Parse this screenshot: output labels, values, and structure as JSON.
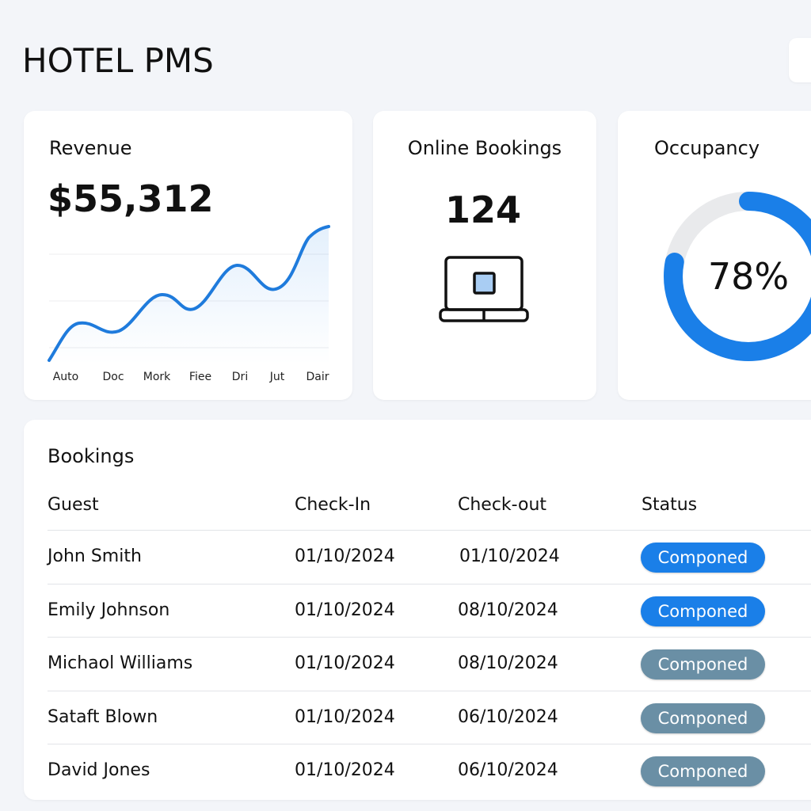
{
  "header": {
    "title": "HOTEL PMS"
  },
  "revenue": {
    "title": "Revenue",
    "value": "$55,312",
    "x_labels": [
      "Auto",
      "Doc",
      "Mork",
      "Fiee",
      "Dri",
      "Jut",
      "Dair"
    ]
  },
  "online_bookings": {
    "title": "Online Bookings",
    "value": "124"
  },
  "occupancy": {
    "title": "Occupancy",
    "value": 78,
    "value_label": "78%",
    "color": "#1a7fe8",
    "track_color": "#e9eaec"
  },
  "bookings": {
    "title": "Bookings",
    "columns": [
      "Guest",
      "Check-In",
      "Check-out",
      "Status"
    ],
    "rows": [
      {
        "guest": "John Smith",
        "check_in": "01/10/2024",
        "check_out": "01/10/2024",
        "status": "Componed",
        "status_color": "#1a7fe8"
      },
      {
        "guest": "Emily Johnson",
        "check_in": "01/10/2024",
        "check_out": "08/10/2024",
        "status": "Componed",
        "status_color": "#1a7fe8"
      },
      {
        "guest": "Michaol Williams",
        "check_in": "01/10/2024",
        "check_out": "08/10/2024",
        "status": "Componed",
        "status_color": "#6a8fa5"
      },
      {
        "guest": "Sataft Blown",
        "check_in": "01/10/2024",
        "check_out": "06/10/2024",
        "status": "Componed",
        "status_color": "#6a8fa5"
      },
      {
        "guest": "David Jones",
        "check_in": "01/10/2024",
        "check_out": "06/10/2024",
        "status": "Componed",
        "status_color": "#6a8fa5"
      }
    ]
  }
}
